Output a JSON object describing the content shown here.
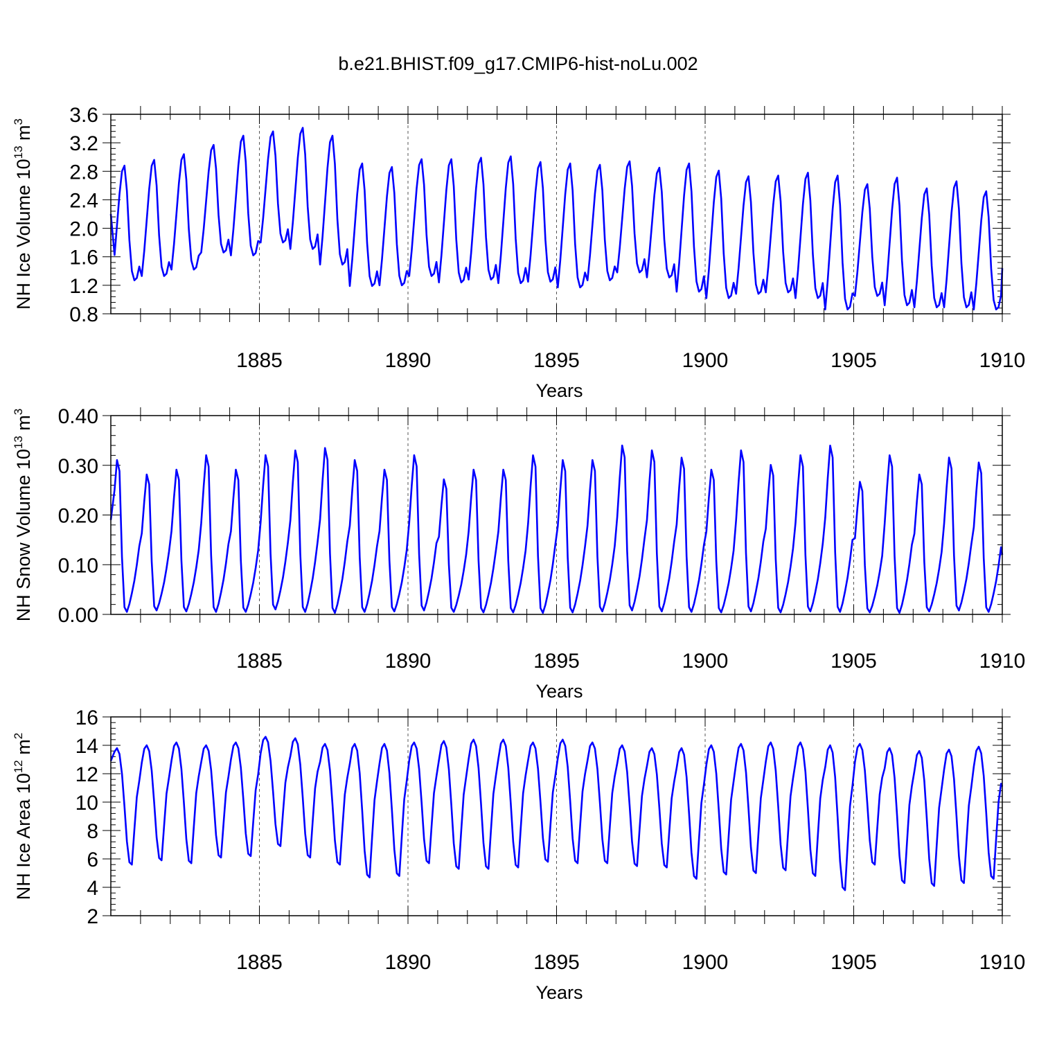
{
  "title": "b.e21.BHIST.f09_g17.CMIP6-hist-noLu.002",
  "colors": {
    "line": "#0000ff",
    "axes": "#000000",
    "ref_lines": "#555555"
  },
  "chart_data": [
    {
      "type": "line",
      "name": "ice-volume",
      "ylabel": {
        "prefix": "NH Ice Volume 10",
        "exp1": "13",
        "mid": " m",
        "exp2": "3"
      },
      "xlabel": "Years",
      "xlim": [
        1880,
        1910
      ],
      "ylim": [
        0.8,
        3.6
      ],
      "x_ticks": [
        1885,
        1890,
        1895,
        1900,
        1905,
        1910
      ],
      "x_tick_labels": [
        "1885",
        "1890",
        "1895",
        "1900",
        "1905",
        "1910"
      ],
      "y_ticks": [
        0.8,
        1.2,
        1.6,
        2.0,
        2.4,
        2.8,
        3.2,
        3.6
      ],
      "y_tick_labels": [
        "0.8",
        "1.2",
        "1.6",
        "2.0",
        "2.4",
        "2.8",
        "3.2",
        "3.6"
      ],
      "ref_lines_x": [
        1885,
        1890,
        1895,
        1900,
        1905
      ],
      "seasonal_phase": [
        0.0,
        0.22,
        0.48,
        0.75,
        0.95,
        1.0,
        0.78,
        0.35,
        0.08,
        0.0,
        0.02,
        0.12
      ],
      "yearly_max": [
        2.88,
        2.96,
        3.04,
        3.17,
        3.3,
        3.36,
        3.41,
        3.3,
        2.91,
        2.86,
        2.97,
        2.97,
        2.99,
        3.01,
        2.93,
        2.91,
        2.89,
        2.94,
        2.85,
        2.91,
        2.81,
        2.73,
        2.74,
        2.78,
        2.74,
        2.62,
        2.71,
        2.56,
        2.66,
        2.52
      ],
      "yearly_min": [
        1.27,
        1.33,
        1.42,
        1.66,
        1.62,
        1.8,
        1.71,
        1.49,
        1.19,
        1.2,
        1.33,
        1.24,
        1.28,
        1.23,
        1.25,
        1.17,
        1.27,
        1.38,
        1.31,
        1.11,
        1.02,
        1.08,
        1.1,
        1.02,
        0.86,
        1.05,
        0.92,
        0.89,
        0.89,
        0.86
      ],
      "start_value": 2.2,
      "end_value": 1.44
    },
    {
      "type": "line",
      "name": "snow-volume",
      "ylabel": {
        "prefix": "NH Snow Volume 10",
        "exp1": "13",
        "mid": " m",
        "exp2": "3"
      },
      "xlabel": "Years",
      "xlim": [
        1880,
        1910
      ],
      "ylim": [
        0.0,
        0.4
      ],
      "x_ticks": [
        1885,
        1890,
        1895,
        1900,
        1905,
        1910
      ],
      "x_tick_labels": [
        "1885",
        "1890",
        "1895",
        "1900",
        "1905",
        "1910"
      ],
      "y_ticks": [
        0.0,
        0.1,
        0.2,
        0.3,
        0.4
      ],
      "y_tick_labels": [
        "0.00",
        "0.10",
        "0.20",
        "0.30",
        "0.40"
      ],
      "ref_lines_x": [
        1885,
        1890,
        1895,
        1900,
        1905
      ],
      "seasonal_phase": [
        0.55,
        0.78,
        0.97,
        0.9,
        0.35,
        0.03,
        0.0,
        0.05,
        0.12,
        0.2,
        0.3,
        0.42
      ],
      "yearly_max": [
        0.32,
        0.29,
        0.3,
        0.33,
        0.3,
        0.33,
        0.34,
        0.345,
        0.32,
        0.3,
        0.33,
        0.28,
        0.3,
        0.3,
        0.33,
        0.32,
        0.32,
        0.35,
        0.34,
        0.325,
        0.3,
        0.34,
        0.31,
        0.33,
        0.35,
        0.275,
        0.33,
        0.29,
        0.325,
        0.315
      ],
      "yearly_min": [
        0.005,
        0.008,
        0.006,
        0.005,
        0.005,
        0.01,
        0.005,
        0.003,
        0.005,
        0.006,
        0.008,
        0.005,
        0.004,
        0.004,
        0.003,
        0.004,
        0.006,
        0.008,
        0.006,
        0.005,
        0.004,
        0.006,
        0.004,
        0.006,
        0.005,
        0.004,
        0.003,
        0.006,
        0.008,
        0.005
      ],
      "start_value": 0.19,
      "end_value": 0.12
    },
    {
      "type": "line",
      "name": "ice-area",
      "ylabel": {
        "prefix": "NH Ice Area 10",
        "exp1": "12",
        "mid": " m",
        "exp2": "2"
      },
      "xlabel": "Years",
      "xlim": [
        1880,
        1910
      ],
      "ylim": [
        2,
        16
      ],
      "x_ticks": [
        1885,
        1890,
        1895,
        1900,
        1905,
        1910
      ],
      "x_tick_labels": [
        "1885",
        "1890",
        "1895",
        "1900",
        "1905",
        "1910"
      ],
      "y_ticks": [
        2,
        4,
        6,
        8,
        10,
        12,
        14,
        16
      ],
      "y_tick_labels": [
        "2",
        "4",
        "6",
        "8",
        "10",
        "12",
        "14",
        "16"
      ],
      "ref_lines_x": [
        1885,
        1890,
        1895,
        1900,
        1905
      ],
      "seasonal_phase": [
        0.85,
        0.97,
        1.0,
        0.95,
        0.78,
        0.5,
        0.2,
        0.02,
        0.0,
        0.3,
        0.58,
        0.72
      ],
      "yearly_max": [
        13.8,
        14.0,
        14.2,
        14.0,
        14.2,
        14.6,
        14.5,
        14.1,
        14.1,
        14.1,
        14.2,
        14.3,
        14.4,
        14.4,
        14.2,
        14.4,
        14.2,
        14.0,
        13.8,
        13.8,
        14.0,
        14.1,
        14.2,
        14.2,
        14.0,
        14.1,
        13.8,
        13.6,
        13.7,
        13.9
      ],
      "yearly_min": [
        5.6,
        5.9,
        5.7,
        6.1,
        6.2,
        6.9,
        6.1,
        5.6,
        4.7,
        4.8,
        5.7,
        5.3,
        5.3,
        5.4,
        5.8,
        5.7,
        5.7,
        5.5,
        5.4,
        4.6,
        4.9,
        5.0,
        5.2,
        4.8,
        3.8,
        5.6,
        4.3,
        4.1,
        4.3,
        4.6
      ],
      "start_value": 12.9,
      "end_value": 11.1
    }
  ]
}
